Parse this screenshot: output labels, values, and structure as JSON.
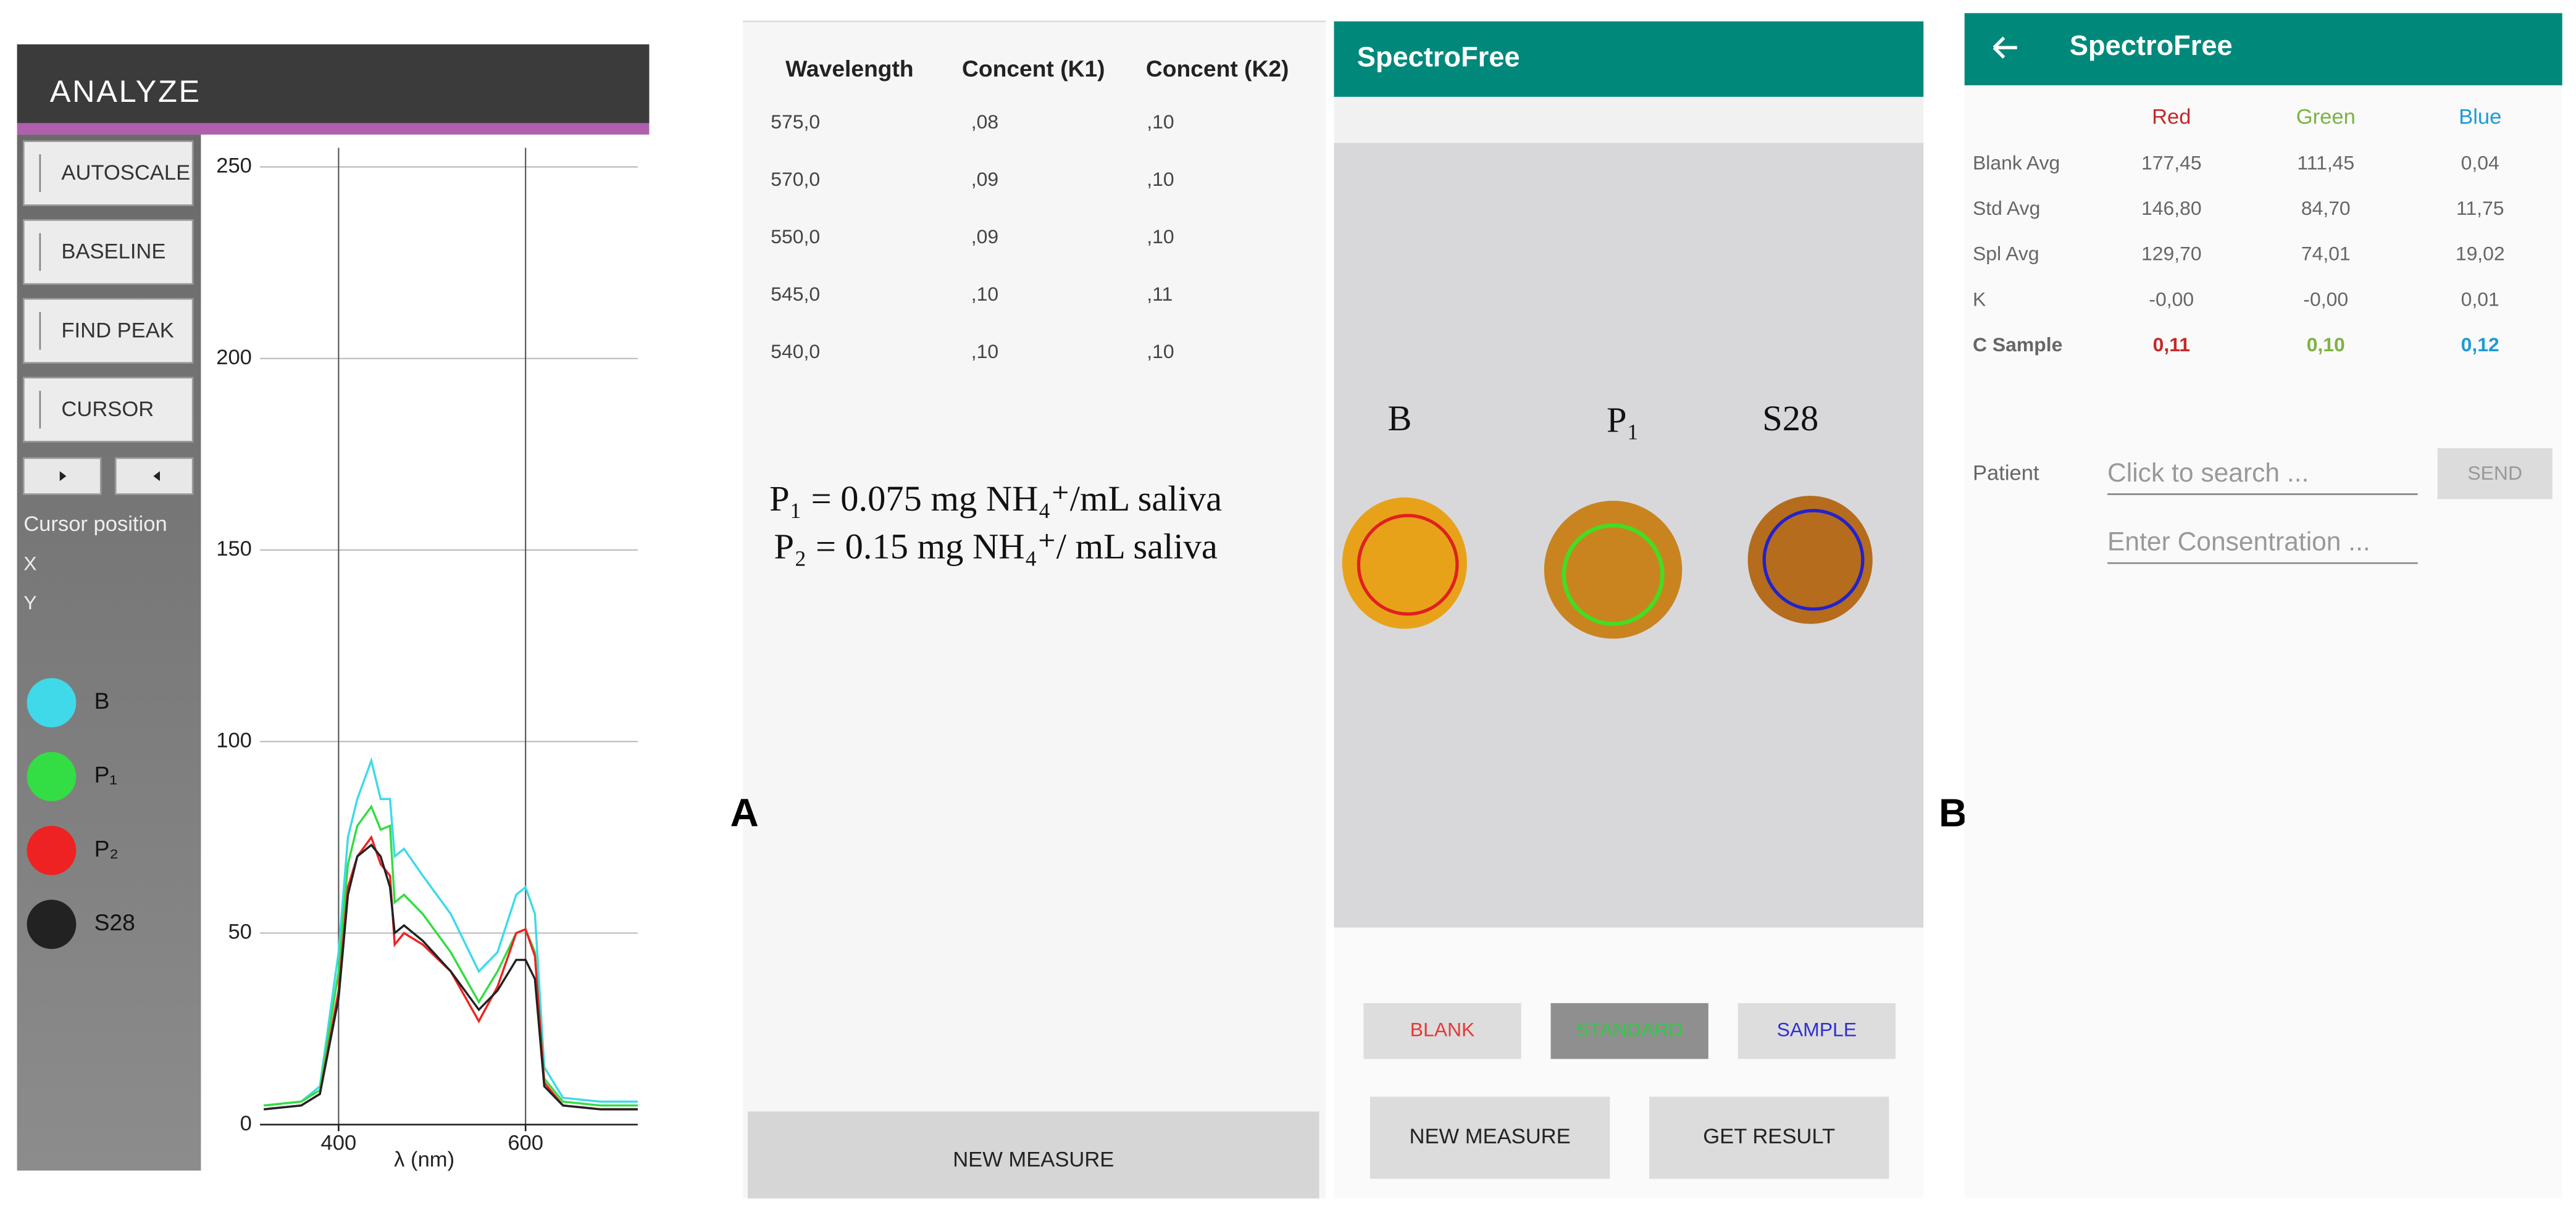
{
  "analyze_panel": {
    "title": "ANALYZE",
    "buttons": [
      "AUTOSCALE",
      "BASELINE",
      "FIND PEAK",
      "CURSOR"
    ],
    "cursor_position": "Cursor position",
    "cursor_x": "X",
    "cursor_y": "Y"
  },
  "chart_data": {
    "type": "line",
    "x_label": "λ (nm)",
    "x": [
      320,
      360,
      380,
      400,
      410,
      420,
      435,
      445,
      455,
      460,
      470,
      490,
      520,
      550,
      570,
      590,
      600,
      610,
      620,
      640,
      680,
      720
    ],
    "xlim": [
      316,
      720
    ],
    "xticks": [
      400,
      600
    ],
    "ylim": [
      0,
      255
    ],
    "yticks": [
      0,
      50,
      100,
      150,
      200,
      250
    ],
    "grid": true,
    "series": [
      {
        "name": "B",
        "color": "#3fd9ea",
        "values": [
          5,
          6,
          10,
          45,
          75,
          85,
          95,
          85,
          85,
          70,
          72,
          65,
          55,
          40,
          45,
          60,
          62,
          55,
          15,
          7,
          6,
          6
        ]
      },
      {
        "name": "P₁",
        "color": "#33dd44",
        "values": [
          5,
          6,
          9,
          40,
          68,
          78,
          83,
          77,
          78,
          58,
          60,
          55,
          45,
          32,
          40,
          50,
          51,
          45,
          12,
          6,
          5,
          5
        ]
      },
      {
        "name": "P₂",
        "color": "#ee2222",
        "values": [
          4,
          5,
          8,
          35,
          62,
          70,
          75,
          68,
          65,
          47,
          50,
          47,
          40,
          27,
          36,
          50,
          51,
          44,
          11,
          5,
          4,
          4
        ]
      },
      {
        "name": "S28",
        "color": "#222222",
        "values": [
          4,
          5,
          8,
          33,
          60,
          70,
          73,
          70,
          62,
          50,
          52,
          48,
          40,
          30,
          35,
          43,
          43,
          38,
          10,
          5,
          4,
          4
        ]
      }
    ]
  },
  "table_panel": {
    "headers": [
      "Wavelength",
      "Concent (K1)",
      "Concent (K2)"
    ],
    "rows": [
      [
        "575,0",
        ",08",
        ",10"
      ],
      [
        "570,0",
        ",09",
        ",10"
      ],
      [
        "550,0",
        ",09",
        ",10"
      ],
      [
        "545,0",
        ",10",
        ",11"
      ],
      [
        "540,0",
        ",10",
        ",10"
      ]
    ],
    "notes": [
      "P₁ = 0.075 mg NH₄⁺/mL saliva",
      "P₂ = 0.15 mg NH₄⁺/ mL saliva"
    ],
    "button": "NEW MEASURE"
  },
  "figure_labels": [
    "A",
    "B"
  ],
  "camera_panel": {
    "app_title": "SpectroFree",
    "spot_labels": [
      "B",
      "P₁",
      "S28"
    ],
    "mode_buttons": [
      "BLANK",
      "STANDARD",
      "SAMPLE"
    ],
    "action_buttons": [
      "NEW MEASURE",
      "GET RESULT"
    ]
  },
  "result_panel": {
    "app_title": "SpectroFree",
    "columns": [
      "Red",
      "Green",
      "Blue"
    ],
    "rows": [
      {
        "label": "Blank Avg",
        "values": [
          "177,45",
          "111,45",
          "0,04"
        ]
      },
      {
        "label": "Std Avg",
        "values": [
          "146,80",
          "84,70",
          "11,75"
        ]
      },
      {
        "label": "Spl Avg",
        "values": [
          "129,70",
          "74,01",
          "19,02"
        ]
      },
      {
        "label": "K",
        "values": [
          "-0,00",
          "-0,00",
          "0,01"
        ]
      },
      {
        "label": "C Sample",
        "values": [
          "0,11",
          "0,10",
          "0,12"
        ]
      }
    ],
    "patient_label": "Patient",
    "search_placeholder": "Click to search ...",
    "concentration_placeholder": "Enter Consentration ...",
    "send": "SEND"
  }
}
